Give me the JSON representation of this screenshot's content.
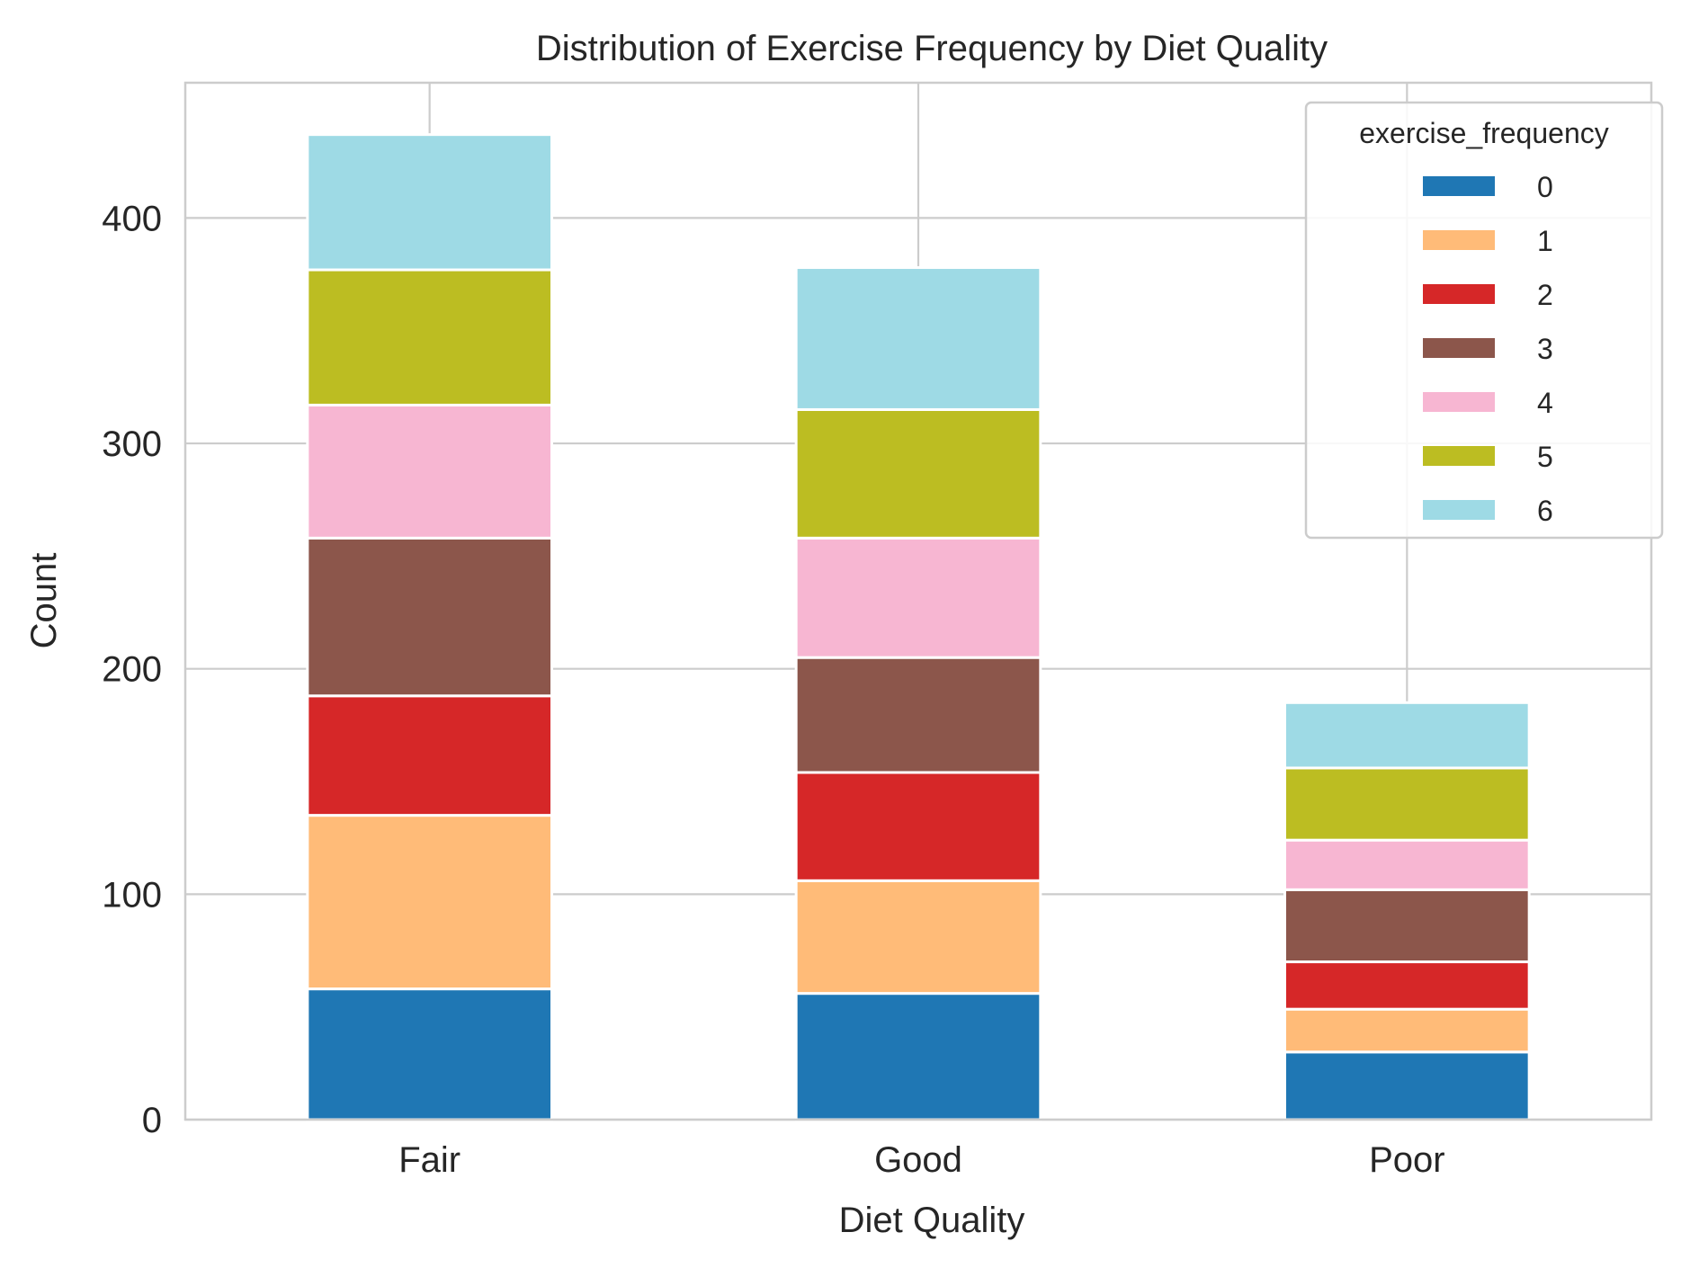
{
  "chart_data": {
    "type": "bar",
    "stacked": true,
    "title": "Distribution of Exercise Frequency by Diet Quality",
    "xlabel": "Diet Quality",
    "ylabel": "Count",
    "categories": [
      "Fair",
      "Good",
      "Poor"
    ],
    "ylim": [
      0,
      460
    ],
    "yticks": [
      0,
      100,
      200,
      300,
      400
    ],
    "grid": true,
    "legend": {
      "title": "exercise_frequency",
      "placement": "top-right"
    },
    "series": [
      {
        "name": "0",
        "color": "#1f77b4",
        "values": [
          58,
          56,
          30
        ]
      },
      {
        "name": "1",
        "color": "#ffbb78",
        "values": [
          77,
          50,
          19
        ]
      },
      {
        "name": "2",
        "color": "#d62728",
        "values": [
          53,
          48,
          21
        ]
      },
      {
        "name": "3",
        "color": "#8c564b",
        "values": [
          70,
          51,
          32
        ]
      },
      {
        "name": "4",
        "color": "#f7b6d2",
        "values": [
          59,
          53,
          22
        ]
      },
      {
        "name": "5",
        "color": "#bcbd22",
        "values": [
          60,
          57,
          32
        ]
      },
      {
        "name": "6",
        "color": "#9edae5",
        "values": [
          60,
          63,
          29
        ]
      }
    ]
  }
}
